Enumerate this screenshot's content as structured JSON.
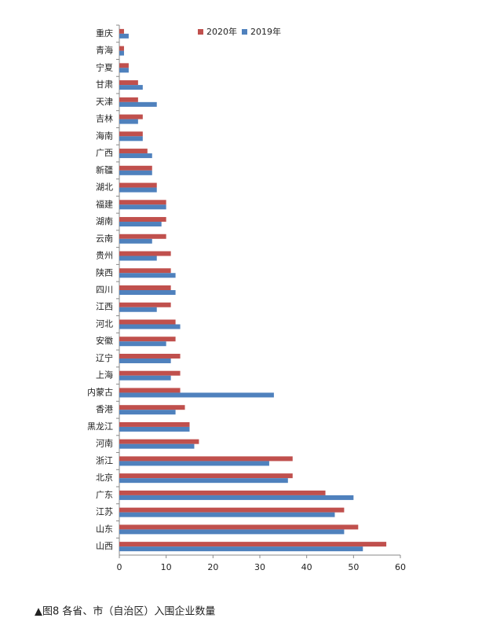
{
  "chart_data": {
    "type": "bar",
    "orientation": "horizontal",
    "categories": [
      "重庆",
      "青海",
      "宁夏",
      "甘肃",
      "天津",
      "吉林",
      "海南",
      "广西",
      "新疆",
      "湖北",
      "福建",
      "湖南",
      "云南",
      "贵州",
      "陕西",
      "四川",
      "江西",
      "河北",
      "安徽",
      "辽宁",
      "上海",
      "内蒙古",
      "香港",
      "黑龙江",
      "河南",
      "浙江",
      "北京",
      "广东",
      "江苏",
      "山东",
      "山西"
    ],
    "series": [
      {
        "name": "2020年",
        "color": "#c0504d",
        "values": [
          1,
          1,
          2,
          4,
          4,
          5,
          5,
          6,
          7,
          8,
          10,
          10,
          10,
          11,
          11,
          11,
          11,
          12,
          12,
          13,
          13,
          13,
          14,
          15,
          17,
          37,
          37,
          44,
          48,
          51,
          57
        ]
      },
      {
        "name": "2019年",
        "color": "#4f81bd",
        "values": [
          2,
          1,
          2,
          5,
          8,
          4,
          5,
          7,
          7,
          8,
          10,
          9,
          7,
          8,
          12,
          12,
          8,
          13,
          10,
          11,
          11,
          33,
          12,
          15,
          16,
          32,
          36,
          50,
          46,
          48,
          52
        ]
      }
    ],
    "xlim": [
      0,
      60
    ],
    "xticks": [
      0,
      10,
      20,
      30,
      40,
      50,
      60
    ],
    "grid": false,
    "legend": "top"
  },
  "caption": "▲图8 各省、市（自治区）入围企业数量"
}
